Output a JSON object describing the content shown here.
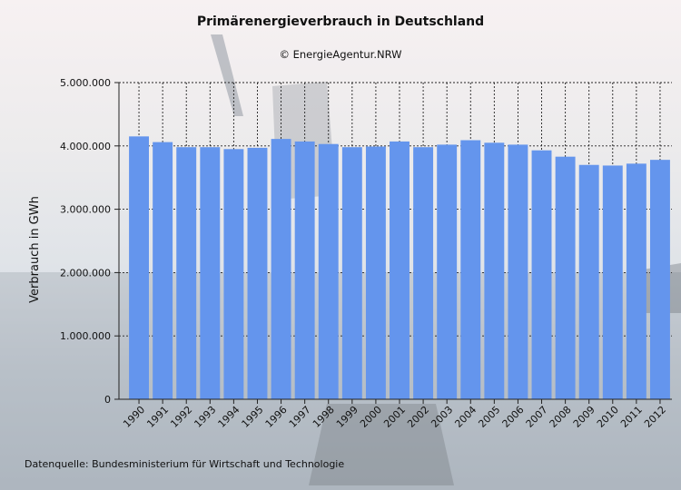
{
  "chart_data": {
    "type": "bar",
    "title": "Primärenergieverbrauch in Deutschland",
    "subtitle": "© EnergieAgentur.NRW",
    "ylabel": "Verbrauch in GWh",
    "xlabel": "",
    "ylim": [
      0,
      5000000
    ],
    "yticks": [
      0,
      1000000,
      2000000,
      3000000,
      4000000,
      5000000
    ],
    "ytick_labels": [
      "0",
      "1.000.000",
      "2.000.000",
      "3.000.000",
      "4.000.000",
      "5.000.000"
    ],
    "grid": "dashed",
    "categories": [
      "1990",
      "1991",
      "1992",
      "1993",
      "1994",
      "1995",
      "1996",
      "1997",
      "1998",
      "1999",
      "2000",
      "2001",
      "2002",
      "2003",
      "2004",
      "2005",
      "2006",
      "2007",
      "2008",
      "2009",
      "2010",
      "2011",
      "2012"
    ],
    "values": [
      4150000,
      4060000,
      3980000,
      3980000,
      3950000,
      3970000,
      4110000,
      4070000,
      4030000,
      3980000,
      3990000,
      4070000,
      3980000,
      4020000,
      4090000,
      4050000,
      4020000,
      3930000,
      3830000,
      3700000,
      3690000,
      3720000,
      3780000
    ],
    "bar_color": "#6495ed"
  },
  "footer": {
    "source": "Datenquelle: Bundesministerium für Wirtschaft und Technologie"
  }
}
